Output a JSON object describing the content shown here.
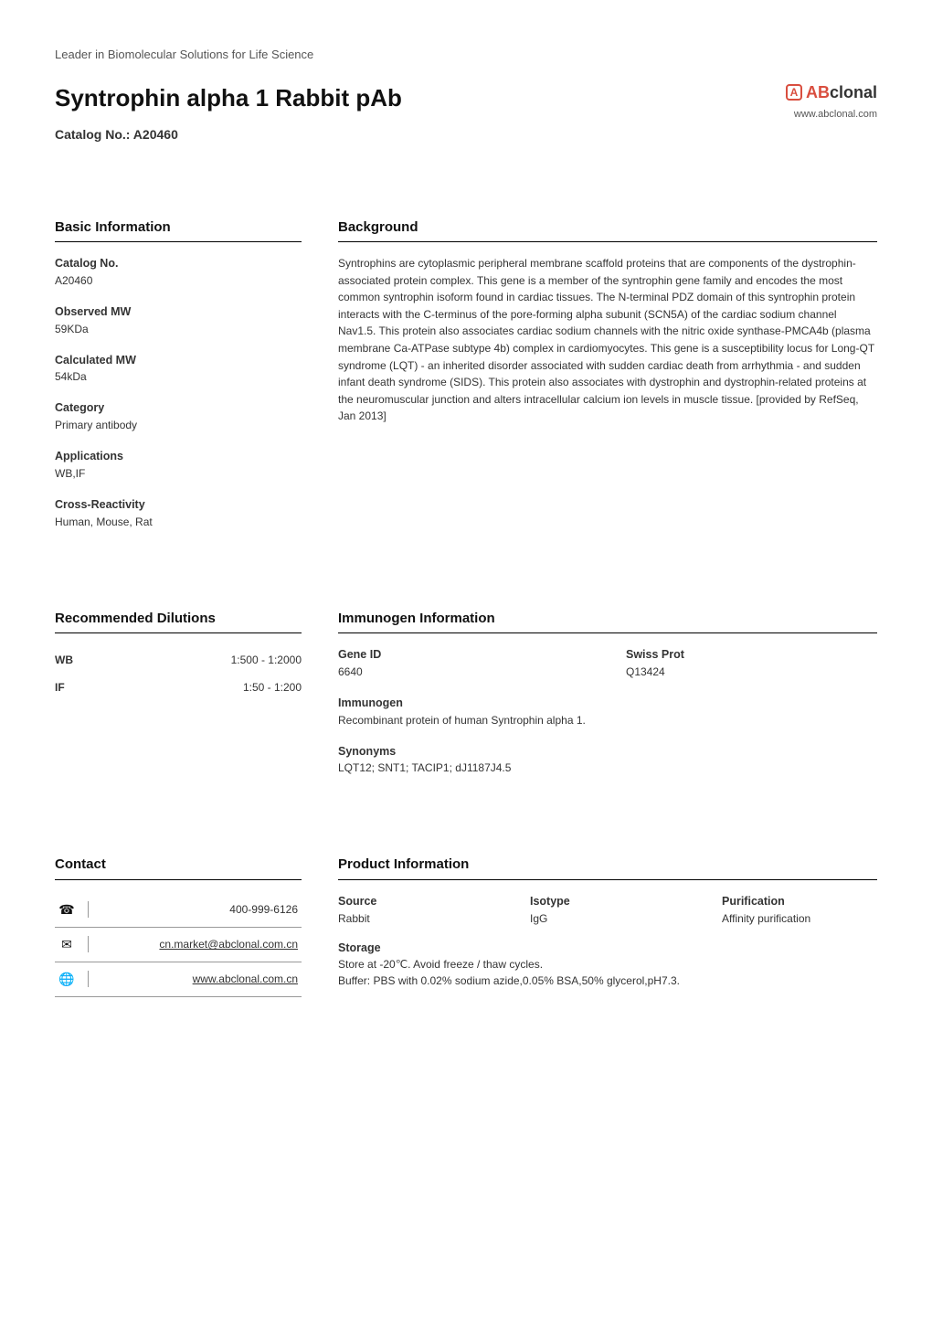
{
  "header": {
    "tagline": "Leader in Biomolecular Solutions for Life Science",
    "title": "Syntrophin alpha 1 Rabbit pAb",
    "catalog_line": "Catalog No.: A20460",
    "logo": {
      "mark_letter": "A",
      "text_ab": "AB",
      "text_clonal": "clonal",
      "url": "www.abclonal.com"
    }
  },
  "basic_info": {
    "heading": "Basic Information",
    "fields": [
      {
        "label": "Catalog No.",
        "value": "A20460"
      },
      {
        "label": "Observed MW",
        "value": "59KDa"
      },
      {
        "label": "Calculated MW",
        "value": "54kDa"
      },
      {
        "label": "Category",
        "value": "Primary antibody"
      },
      {
        "label": "Applications",
        "value": "WB,IF"
      },
      {
        "label": "Cross-Reactivity",
        "value": "Human, Mouse, Rat"
      }
    ]
  },
  "background": {
    "heading": "Background",
    "text": "Syntrophins are cytoplasmic peripheral membrane scaffold proteins that are components of the dystrophin-associated protein complex. This gene is a member of the syntrophin gene family and encodes the most common syntrophin isoform found in cardiac tissues. The N-terminal PDZ domain of this syntrophin protein interacts with the C-terminus of the pore-forming alpha subunit (SCN5A) of the cardiac sodium channel Nav1.5. This protein also associates cardiac sodium channels with the nitric oxide synthase-PMCA4b (plasma membrane Ca-ATPase subtype 4b) complex in cardiomyocytes. This gene is a susceptibility locus for Long-QT syndrome (LQT) - an inherited disorder associated with sudden cardiac death from arrhythmia - and sudden infant death syndrome (SIDS). This protein also associates with dystrophin and dystrophin-related proteins at the neuromuscular junction and alters intracellular calcium ion levels in muscle tissue. [provided by RefSeq, Jan 2013]"
  },
  "dilutions": {
    "heading": "Recommended Dilutions",
    "rows": [
      {
        "app": "WB",
        "range": "1:500 - 1:2000"
      },
      {
        "app": "IF",
        "range": "1:50 - 1:200"
      }
    ]
  },
  "immunogen": {
    "heading": "Immunogen Information",
    "gene_id_label": "Gene ID",
    "gene_id": "6640",
    "swiss_prot_label": "Swiss Prot",
    "swiss_prot": "Q13424",
    "immunogen_label": "Immunogen",
    "immunogen_text": "Recombinant protein of human Syntrophin alpha 1.",
    "synonyms_label": "Synonyms",
    "synonyms_text": "LQT12; SNT1; TACIP1; dJ1187J4.5"
  },
  "contact": {
    "heading": "Contact",
    "rows": [
      {
        "icon": "phone-icon",
        "glyph": "☎",
        "value": "400-999-6126",
        "underline": false
      },
      {
        "icon": "email-icon",
        "glyph": "✉",
        "value": "cn.market@abclonal.com.cn",
        "underline": true
      },
      {
        "icon": "globe-icon",
        "glyph": "🌐",
        "value": "www.abclonal.com.cn",
        "underline": true
      }
    ]
  },
  "product_info": {
    "heading": "Product Information",
    "source_label": "Source",
    "source": "Rabbit",
    "isotype_label": "Isotype",
    "isotype": "IgG",
    "purification_label": "Purification",
    "purification": "Affinity purification",
    "storage_label": "Storage",
    "storage_line1": "Store at -20℃. Avoid freeze / thaw cycles.",
    "storage_line2": "Buffer: PBS with 0.02% sodium azide,0.05% BSA,50% glycerol,pH7.3."
  },
  "colors": {
    "brand_red": "#d94e3f",
    "text": "#333333",
    "rule": "#000000",
    "light_rule": "#999999",
    "background": "#ffffff"
  }
}
